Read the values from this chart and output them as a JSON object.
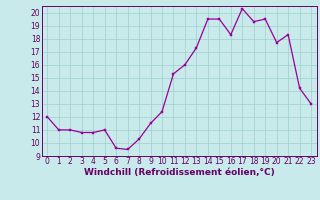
{
  "x": [
    0,
    1,
    2,
    3,
    4,
    5,
    6,
    7,
    8,
    9,
    10,
    11,
    12,
    13,
    14,
    15,
    16,
    17,
    18,
    19,
    20,
    21,
    22,
    23
  ],
  "y": [
    12,
    11,
    11,
    10.8,
    10.8,
    11,
    9.6,
    9.5,
    10.3,
    11.5,
    12.4,
    15.3,
    16.0,
    17.3,
    19.5,
    19.5,
    18.3,
    20.3,
    19.3,
    19.5,
    17.7,
    18.3,
    14.2,
    13.0
  ],
  "line_color": "#990099",
  "marker_color": "#990099",
  "bg_color": "#c8eaea",
  "grid_color": "#9ecece",
  "axis_color": "#660066",
  "xlabel": "Windchill (Refroidissement éolien,°C)",
  "ylim": [
    9,
    20.5
  ],
  "xlim": [
    -0.5,
    23.5
  ],
  "yticks": [
    9,
    10,
    11,
    12,
    13,
    14,
    15,
    16,
    17,
    18,
    19,
    20
  ],
  "xticks": [
    0,
    1,
    2,
    3,
    4,
    5,
    6,
    7,
    8,
    9,
    10,
    11,
    12,
    13,
    14,
    15,
    16,
    17,
    18,
    19,
    20,
    21,
    22,
    23
  ],
  "label_fontsize": 6.5,
  "tick_fontsize": 5.5
}
